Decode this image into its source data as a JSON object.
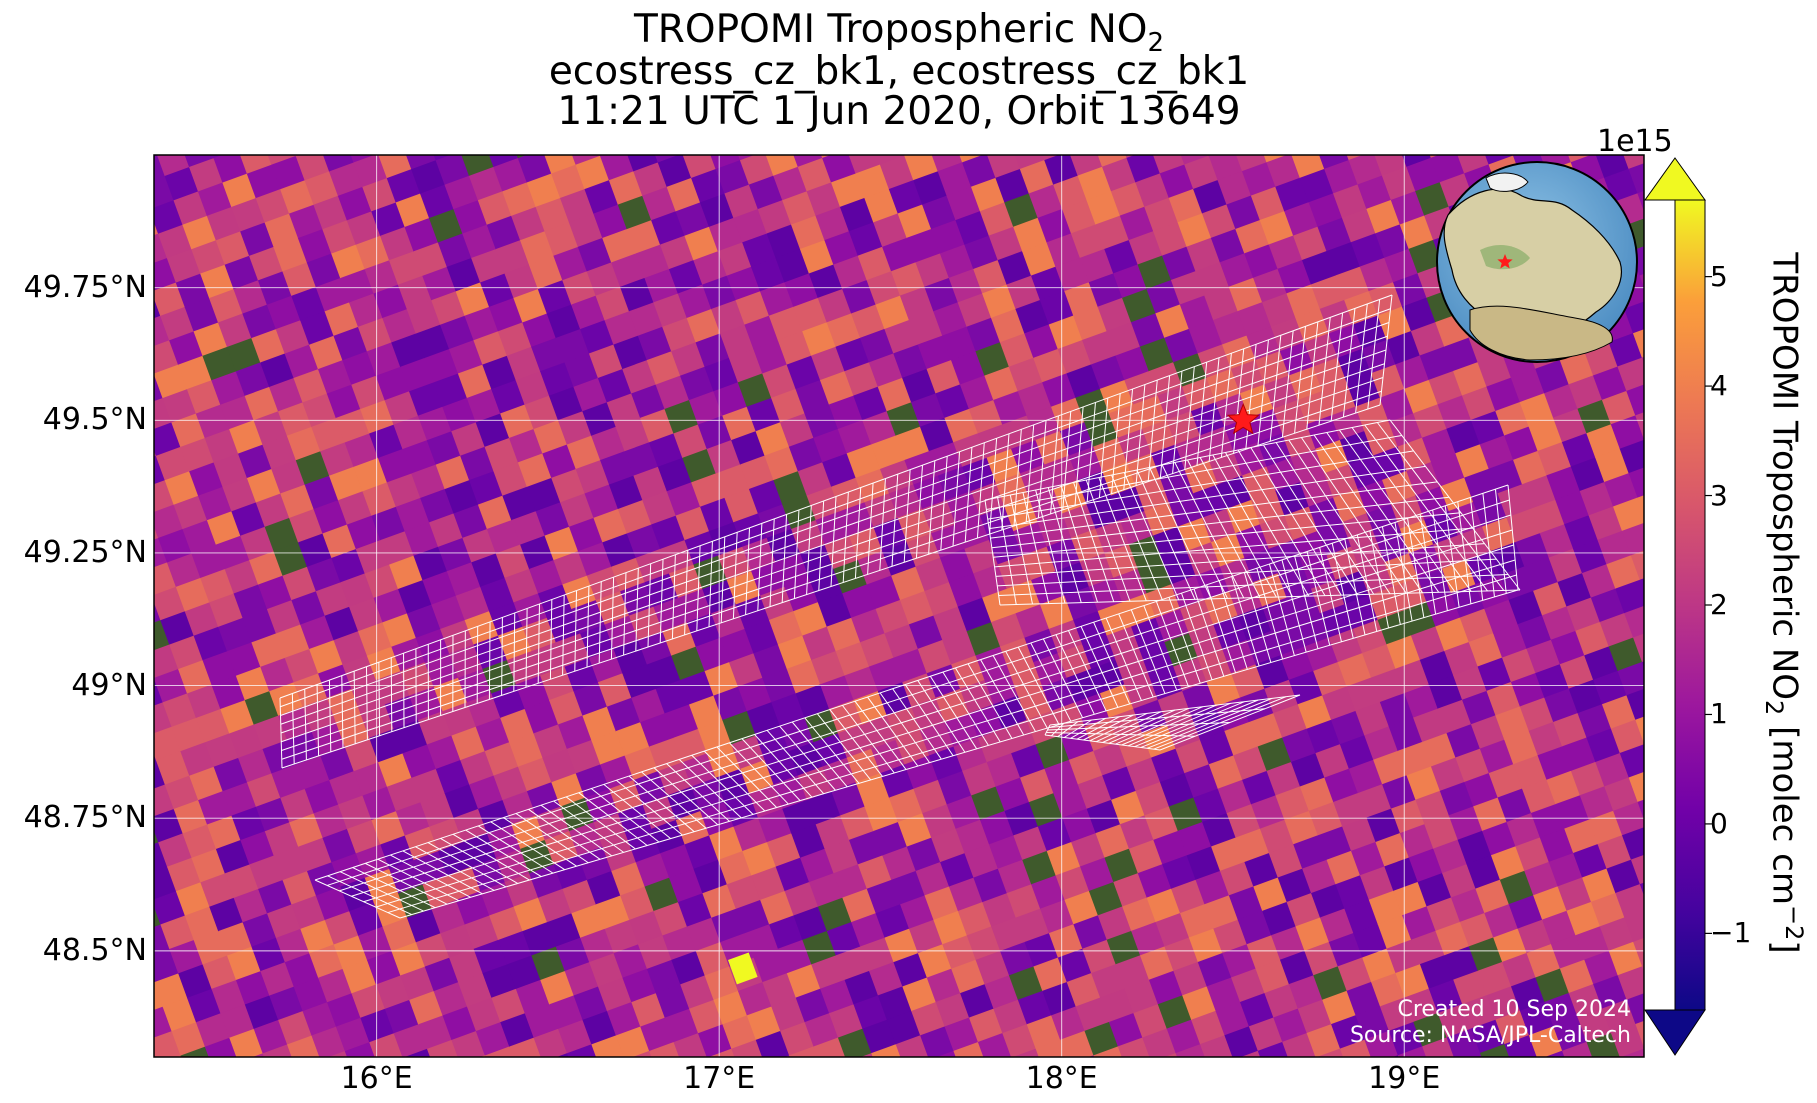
{
  "title": {
    "line1_prefix": "TROPOMI Tropospheric NO",
    "line1_sub": "2",
    "line2": "ecostress_cz_bk1, ecostress_cz_bk1",
    "line3": "11:21 UTC 1 Jun 2020, Orbit 13649"
  },
  "map": {
    "lon_range": [
      15.35,
      19.7
    ],
    "lat_range": [
      48.3,
      50.0
    ],
    "projection": "PlateCarree",
    "gridlines": true,
    "lat_ticks": [
      "49.75°N",
      "49.5°N",
      "49.25°N",
      "49°N",
      "48.75°N",
      "48.5°N"
    ],
    "lon_ticks": [
      "16°E",
      "17°E",
      "18°E",
      "19°E"
    ],
    "target_marker": {
      "lon": 18.53,
      "lat": 49.5,
      "color": "#ff1a1a",
      "symbol": "star"
    },
    "globe_inset": {
      "center_lon": 18.5,
      "center_lat": 49.5,
      "marker": "star",
      "marker_color": "#ff1a1a"
    },
    "colors": {
      "background_pixel": "#b42b8f",
      "footprint_outline": "#ffffff",
      "gridline": "#ffffff"
    }
  },
  "colorbar": {
    "exponent_label": "1e15",
    "label_prefix": "TROPOMI Tropospheric NO",
    "label_sub": "2",
    "label_units_prefix": " [molec cm",
    "label_units_sup": "−2",
    "label_units_suffix": "]",
    "range": [
      -1.7,
      5.7
    ],
    "ticks": [
      "−1",
      "0",
      "1",
      "2",
      "3",
      "4",
      "5"
    ],
    "colormap": "plasma",
    "extend": "both"
  },
  "credit": {
    "created": "Created 10 Sep 2024",
    "source": "Source: NASA/JPL-Caltech"
  }
}
